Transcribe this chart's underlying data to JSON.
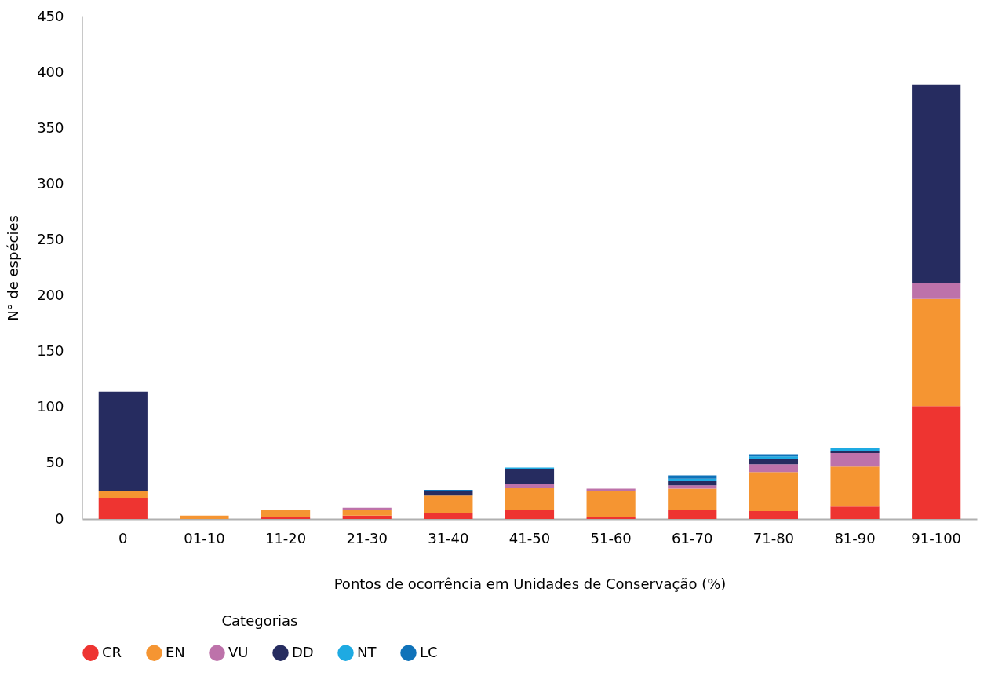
{
  "chart_data": {
    "type": "bar",
    "stacked": true,
    "xlabel": "Pontos de ocorrência em Unidades de Conservação (%)",
    "ylabel": "N° de espécies",
    "legend_title": "Categorias",
    "legend": "bottom",
    "grid": false,
    "categories": [
      "0",
      "01-10",
      "11-20",
      "21-30",
      "31-40",
      "41-50",
      "51-60",
      "61-70",
      "71-80",
      "81-90",
      "91-100"
    ],
    "ylim": [
      0,
      450
    ],
    "yticks": [
      0,
      50,
      100,
      150,
      200,
      250,
      300,
      350,
      400,
      450
    ],
    "series": [
      {
        "name": "CR",
        "color": "#ee3431",
        "values": [
          19,
          0,
          2,
          3,
          5,
          8,
          2,
          8,
          7,
          11,
          101
        ]
      },
      {
        "name": "EN",
        "color": "#f59532",
        "values": [
          6,
          3,
          6,
          5,
          16,
          20,
          23,
          19,
          35,
          36,
          96
        ]
      },
      {
        "name": "VU",
        "color": "#bd72aa",
        "values": [
          0,
          0,
          0,
          2,
          0,
          3,
          2,
          3,
          7,
          12,
          14
        ]
      },
      {
        "name": "DD",
        "color": "#262c60",
        "values": [
          89,
          0,
          0,
          0,
          4,
          14,
          0,
          4,
          5,
          2,
          178
        ]
      },
      {
        "name": "NT",
        "color": "#1eaae2",
        "values": [
          0,
          0,
          0,
          0,
          0,
          1,
          0,
          2,
          2,
          3,
          0
        ]
      },
      {
        "name": "LC",
        "color": "#0f72b9",
        "values": [
          0,
          0,
          0,
          0,
          1,
          0,
          0,
          3,
          2,
          0,
          0
        ]
      }
    ]
  }
}
